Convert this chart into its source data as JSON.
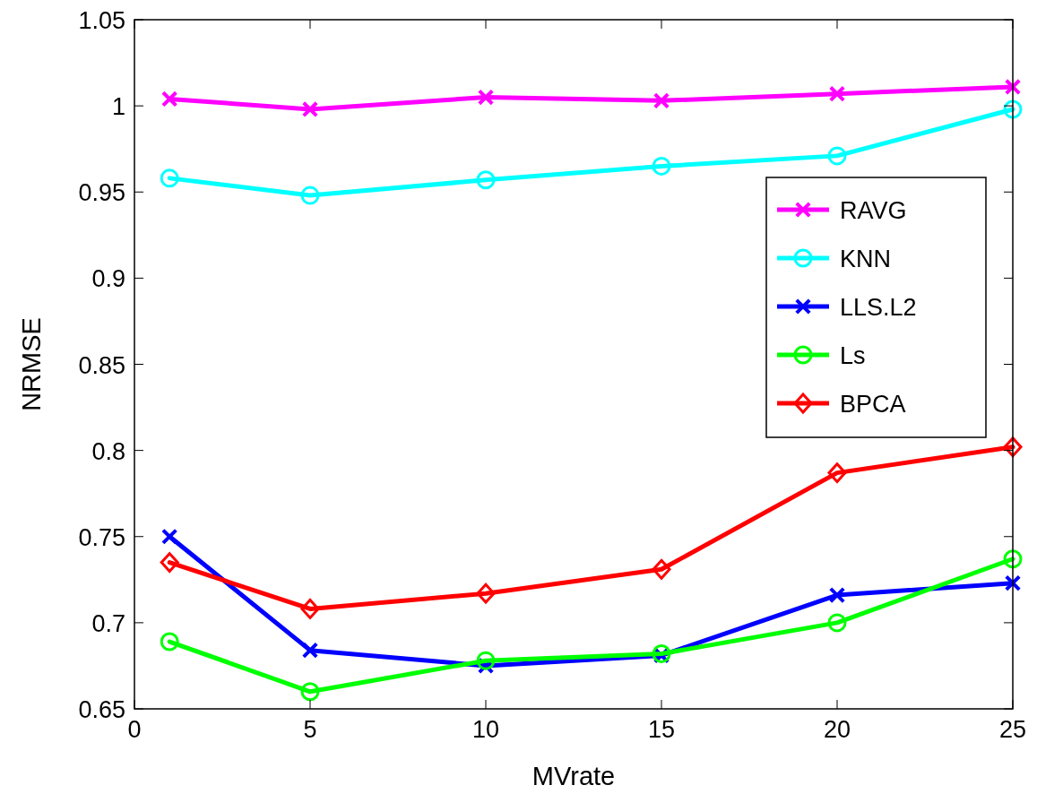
{
  "chart_data": {
    "type": "line",
    "xlabel": "MVrate",
    "ylabel": "NRMSE",
    "x": [
      1,
      5,
      10,
      15,
      20,
      25
    ],
    "xlim": [
      0,
      25
    ],
    "xticks": [
      0,
      5,
      10,
      15,
      20,
      25
    ],
    "ylim": [
      0.65,
      1.05
    ],
    "yticks": [
      0.65,
      0.7,
      0.75,
      0.8,
      0.85,
      0.9,
      0.95,
      1,
      1.05
    ],
    "legend": "right",
    "grid": false,
    "line_style": "solid",
    "series": [
      {
        "name": "RAVG",
        "color": "#ff00ff",
        "marker": "cross",
        "values": [
          1.004,
          0.998,
          1.005,
          1.003,
          1.007,
          1.011
        ]
      },
      {
        "name": "KNN",
        "color": "#00ffff",
        "marker": "circle",
        "values": [
          0.958,
          0.948,
          0.957,
          0.965,
          0.971,
          0.998
        ]
      },
      {
        "name": "LLS.L2",
        "color": "#0000ff",
        "marker": "cross",
        "values": [
          0.75,
          0.684,
          0.675,
          0.681,
          0.716,
          0.723
        ]
      },
      {
        "name": "Ls",
        "color": "#00ff00",
        "marker": "circle",
        "values": [
          0.689,
          0.66,
          0.678,
          0.682,
          0.7,
          0.737
        ]
      },
      {
        "name": "BPCA",
        "color": "#ff0000",
        "marker": "diamond",
        "values": [
          0.735,
          0.708,
          0.717,
          0.731,
          0.787,
          0.802
        ]
      }
    ]
  }
}
